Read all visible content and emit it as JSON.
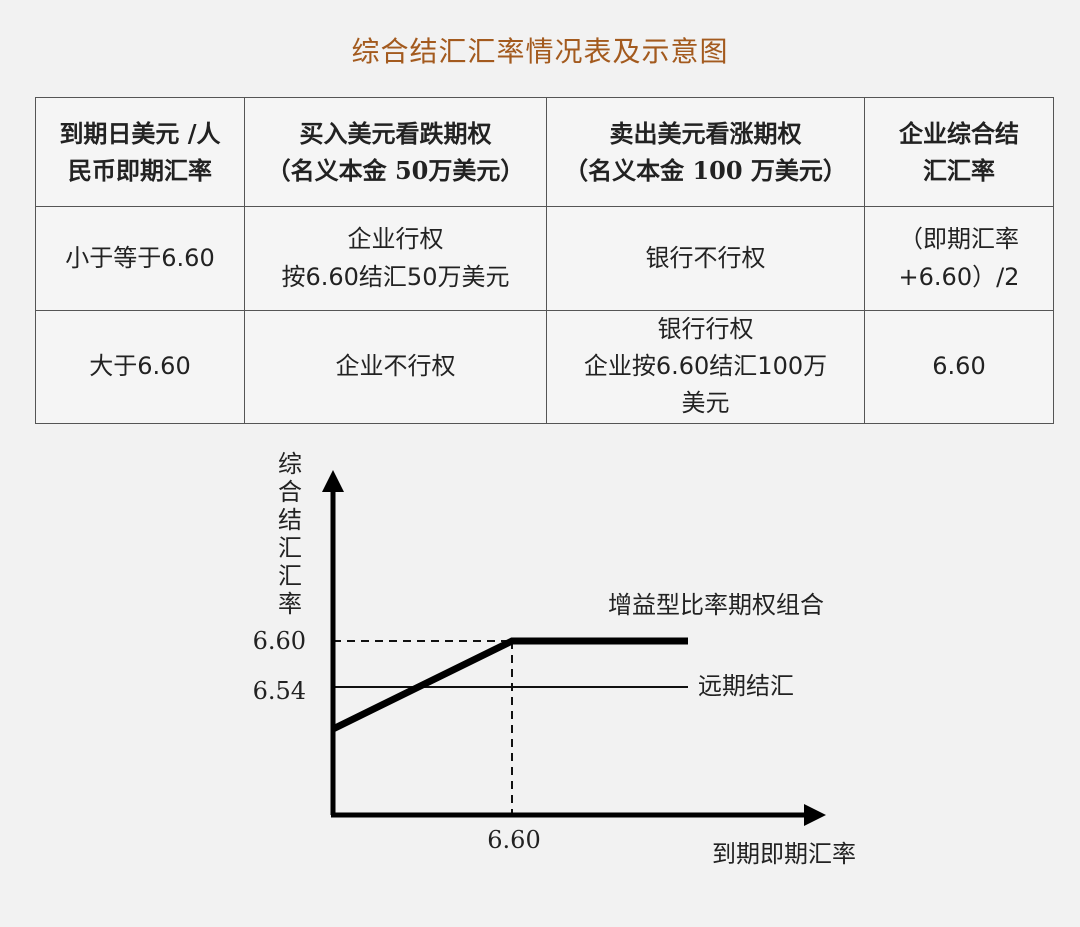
{
  "title": "综合结汇汇率情况表及示意图",
  "table": {
    "headers": [
      [
        "到期日美元 /人",
        "民币即期汇率"
      ],
      [
        "买入美元看跌期权",
        "（名义本金 50万美元）"
      ],
      [
        "卖出美元看涨期权",
        "（名义本金 100 万美元）"
      ],
      [
        "企业综合结",
        "汇汇率"
      ]
    ],
    "rows": [
      [
        [
          "小于等于6.60"
        ],
        [
          "企业行权",
          "按6.60结汇50万美元"
        ],
        [
          "银行不行权"
        ],
        [
          "（即期汇率",
          "+6.60）/2"
        ]
      ],
      [
        [
          "大于6.60"
        ],
        [
          "企业不行权"
        ],
        [
          "银行行权",
          "企业按6.60结汇100万",
          "美元"
        ],
        [
          "6.60"
        ]
      ]
    ]
  },
  "diagram": {
    "y_axis_label": [
      "综",
      "合",
      "结",
      "汇",
      "汇",
      "率"
    ],
    "x_axis_label": "到期即期汇率",
    "y_tick_high": "6.60",
    "y_tick_low": "6.54",
    "x_tick": "6.60",
    "option_combo_label": "增益型比率期权组合",
    "forward_label": "远期结汇"
  }
}
